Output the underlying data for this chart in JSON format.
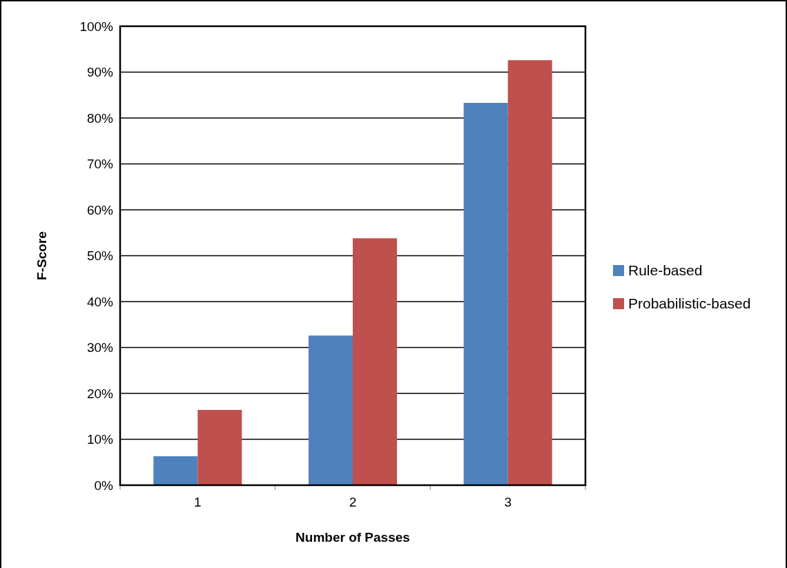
{
  "chart_data": {
    "type": "bar",
    "xlabel": "Number of Passes",
    "ylabel": "F-Score",
    "categories": [
      "1",
      "2",
      "3"
    ],
    "series": [
      {
        "name": "Rule-based",
        "color": "#4f81bd",
        "values": [
          6.3,
          32.6,
          83.3
        ]
      },
      {
        "name": "Probabilistic-based",
        "color": "#c0504d",
        "values": [
          16.4,
          53.8,
          92.6
        ]
      }
    ],
    "ylim": [
      0,
      100
    ],
    "yticks": [
      {
        "value": 0,
        "label": "0%"
      },
      {
        "value": 10,
        "label": "10%"
      },
      {
        "value": 20,
        "label": "20%"
      },
      {
        "value": 30,
        "label": "30%"
      },
      {
        "value": 40,
        "label": "40%"
      },
      {
        "value": 50,
        "label": "50%"
      },
      {
        "value": 60,
        "label": "60%"
      },
      {
        "value": 70,
        "label": "70%"
      },
      {
        "value": 80,
        "label": "80%"
      },
      {
        "value": 90,
        "label": "90%"
      },
      {
        "value": 100,
        "label": "100%"
      }
    ],
    "grid": "y",
    "legend": "right"
  }
}
